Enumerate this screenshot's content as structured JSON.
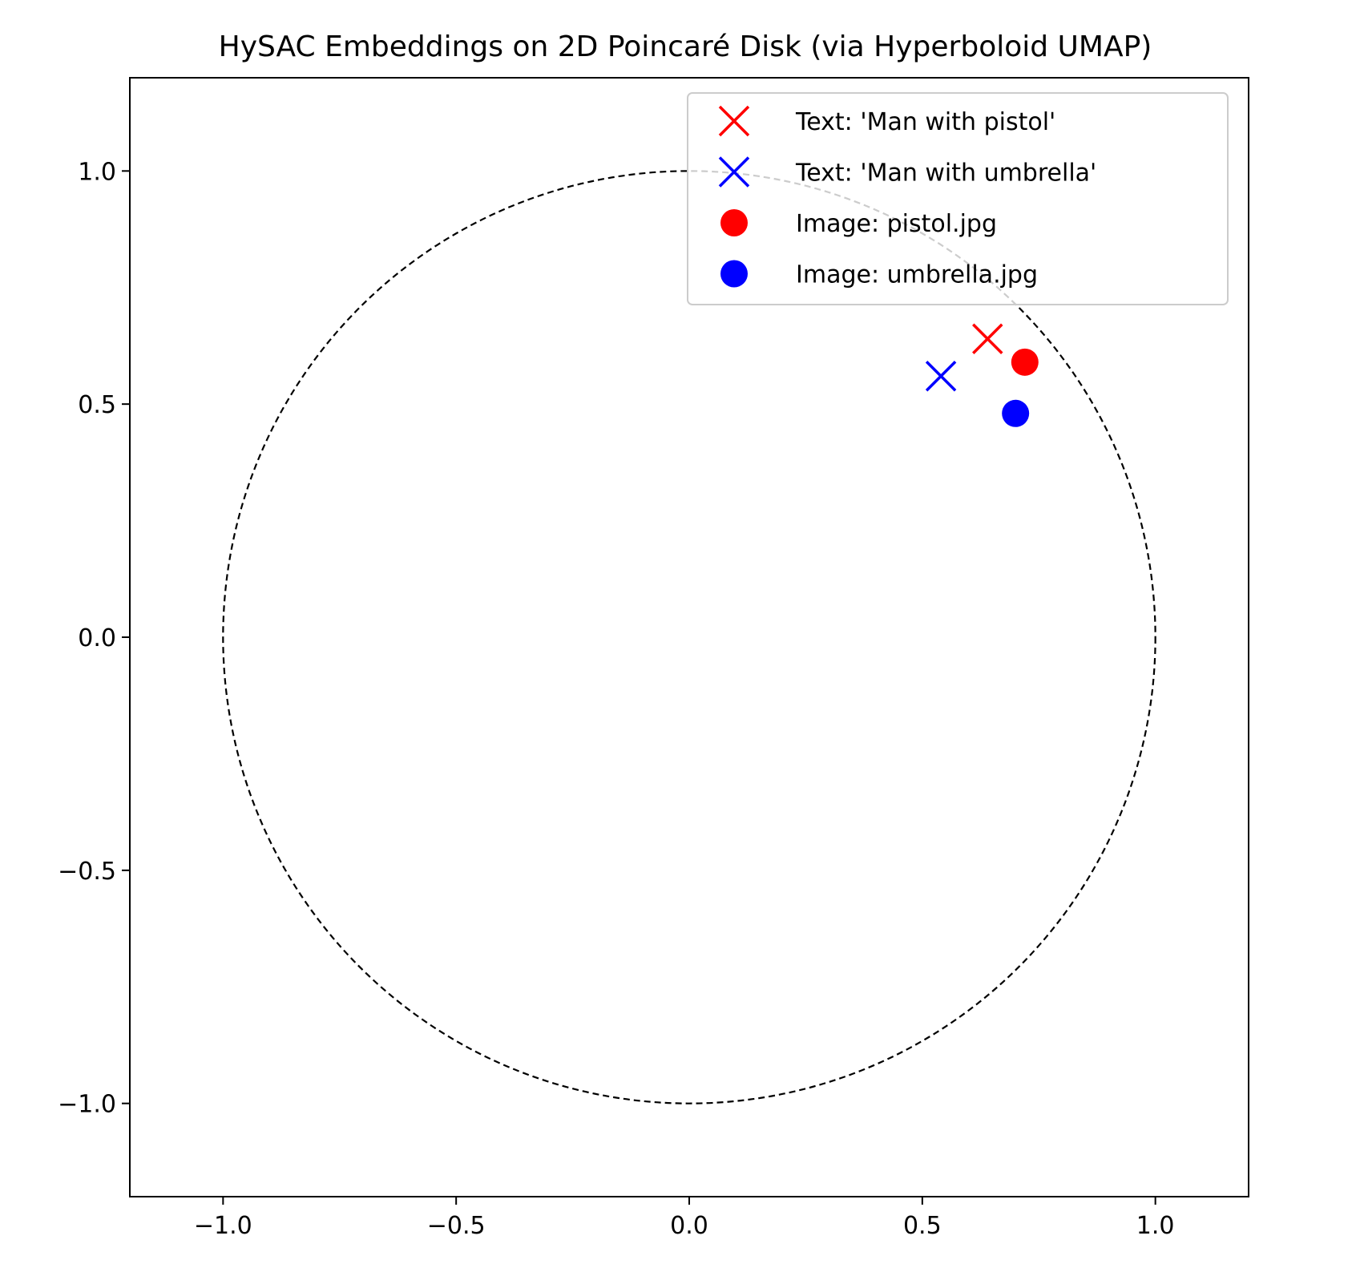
{
  "chart_data": {
    "type": "scatter",
    "title": "HySAC Embeddings on 2D Poincaré Disk (via Hyperboloid UMAP)",
    "xlabel": "",
    "ylabel": "",
    "xlim": [
      -1.2,
      1.2
    ],
    "ylim": [
      -1.2,
      1.2
    ],
    "xticks": [
      -1.0,
      -0.5,
      0.0,
      0.5,
      1.0
    ],
    "yticks": [
      -1.0,
      -0.5,
      0.0,
      0.5,
      1.0
    ],
    "xtick_labels": [
      "−1.0",
      "−0.5",
      "0.0",
      "0.5",
      "1.0"
    ],
    "ytick_labels": [
      "−1.0",
      "−0.5",
      "0.0",
      "0.5",
      "1.0"
    ],
    "grid": false,
    "legend_position": "top-right",
    "unit_circle": {
      "radius": 1.0,
      "style": "dashed",
      "color": "#000000"
    },
    "series": [
      {
        "name": "Text: 'Man with pistol'",
        "marker": "x",
        "color": "#ff0000",
        "points": [
          [
            0.64,
            0.64
          ]
        ]
      },
      {
        "name": "Text: 'Man with umbrella'",
        "marker": "x",
        "color": "#0000ff",
        "points": [
          [
            0.54,
            0.56
          ]
        ]
      },
      {
        "name": "Image: pistol.jpg",
        "marker": "o",
        "color": "#ff0000",
        "points": [
          [
            0.72,
            0.59
          ]
        ]
      },
      {
        "name": "Image: umbrella.jpg",
        "marker": "o",
        "color": "#0000ff",
        "points": [
          [
            0.7,
            0.48
          ]
        ]
      }
    ]
  }
}
